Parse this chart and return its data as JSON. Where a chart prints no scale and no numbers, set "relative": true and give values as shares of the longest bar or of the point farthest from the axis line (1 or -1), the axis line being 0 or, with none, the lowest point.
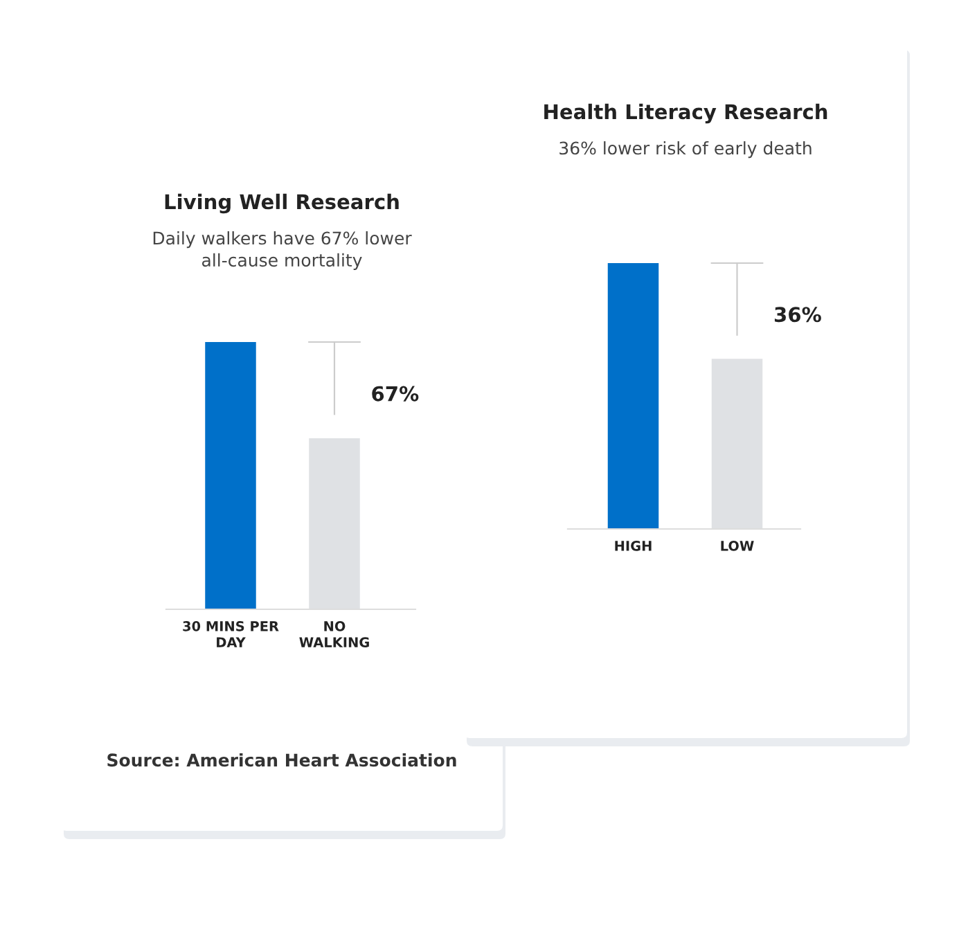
{
  "chart_data": [
    {
      "type": "bar",
      "title": "Living Well Research",
      "subtitle": "Daily walkers have 67% lower\nall-cause mortality",
      "categories": [
        "30 MINS PER\nDAY",
        "NO\nWALKING"
      ],
      "values": [
        1,
        0.64
      ],
      "colors": [
        "#0070c9",
        "#dfe1e4"
      ],
      "relative": true,
      "annotations": [
        "67%",
        "Source: American Heart Association"
      ]
    },
    {
      "type": "bar",
      "title": "Health Literacy Research",
      "subtitle": "36% lower risk of early death",
      "categories": [
        "HIGH",
        "LOW"
      ],
      "values": [
        1,
        0.64
      ],
      "colors": [
        "#0070c9",
        "#dfe1e4"
      ],
      "relative": true,
      "annotations": [
        "36%"
      ]
    }
  ]
}
